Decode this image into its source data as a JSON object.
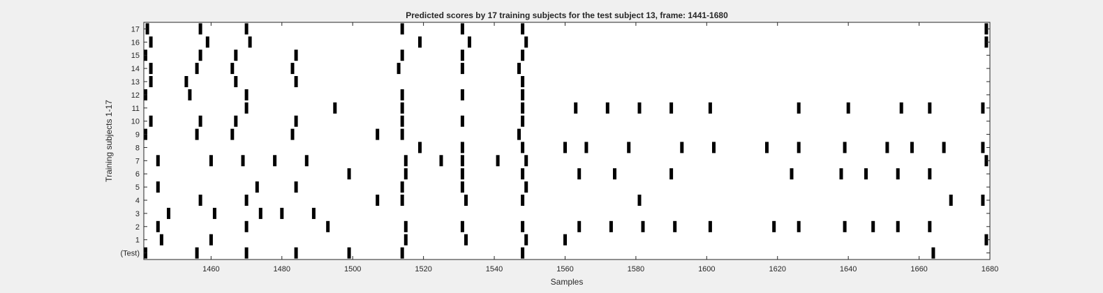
{
  "chart_data": {
    "type": "raster",
    "title": "Predicted scores by 17 training subjects for the test subject 13, frame: 1441-1680",
    "xlabel": "Samples",
    "ylabel": "Training subjects 1-17",
    "xlim": [
      1441,
      1680
    ],
    "x_ticks": [
      1460,
      1480,
      1500,
      1520,
      1540,
      1560,
      1580,
      1600,
      1620,
      1640,
      1660,
      1680
    ],
    "rows": [
      "(Test)",
      "1",
      "2",
      "3",
      "4",
      "5",
      "6",
      "7",
      "8",
      "9",
      "10",
      "11",
      "12",
      "13",
      "14",
      "15",
      "16",
      "17"
    ],
    "events": {
      "(Test)": [
        1441,
        1456,
        1470,
        1484,
        1499,
        1514,
        1548,
        1664
      ],
      "1": [
        1446,
        1460,
        1515,
        1532,
        1549,
        1560,
        1679
      ],
      "2": [
        1445,
        1470,
        1493,
        1515,
        1531,
        1548,
        1564,
        1573,
        1582,
        1591,
        1601,
        1619,
        1626,
        1639,
        1647,
        1654,
        1663
      ],
      "3": [
        1448,
        1461,
        1474,
        1480,
        1489
      ],
      "4": [
        1457,
        1470,
        1507,
        1514,
        1532,
        1548,
        1581,
        1669,
        1678
      ],
      "5": [
        1445,
        1473,
        1484,
        1514,
        1531,
        1549
      ],
      "6": [
        1499,
        1515,
        1531,
        1548,
        1564,
        1574,
        1590,
        1624,
        1638,
        1645,
        1654,
        1663
      ],
      "7": [
        1445,
        1460,
        1469,
        1478,
        1487,
        1515,
        1525,
        1531,
        1541,
        1549,
        1679
      ],
      "8": [
        1519,
        1531,
        1548,
        1560,
        1566,
        1578,
        1593,
        1602,
        1617,
        1626,
        1639,
        1651,
        1658,
        1667,
        1678
      ],
      "9": [
        1441,
        1456,
        1466,
        1483,
        1507,
        1514,
        1547
      ],
      "10": [
        1443,
        1457,
        1467,
        1484,
        1514,
        1531,
        1548
      ],
      "11": [
        1470,
        1495,
        1514,
        1548,
        1563,
        1572,
        1581,
        1590,
        1601,
        1626,
        1640,
        1655,
        1663,
        1678
      ],
      "12": [
        1441,
        1454,
        1470,
        1514,
        1531,
        1548
      ],
      "13": [
        1443,
        1453,
        1467,
        1484,
        1548
      ],
      "14": [
        1443,
        1456,
        1466,
        1483,
        1513,
        1531,
        1547
      ],
      "15": [
        1441,
        1457,
        1467,
        1484,
        1514,
        1531,
        1548
      ],
      "16": [
        1443,
        1459,
        1471,
        1519,
        1533,
        1549,
        1679
      ],
      "17": [
        1442,
        1457,
        1470,
        1514,
        1531,
        1548,
        1679
      ]
    },
    "grid": false,
    "legend": "none"
  }
}
